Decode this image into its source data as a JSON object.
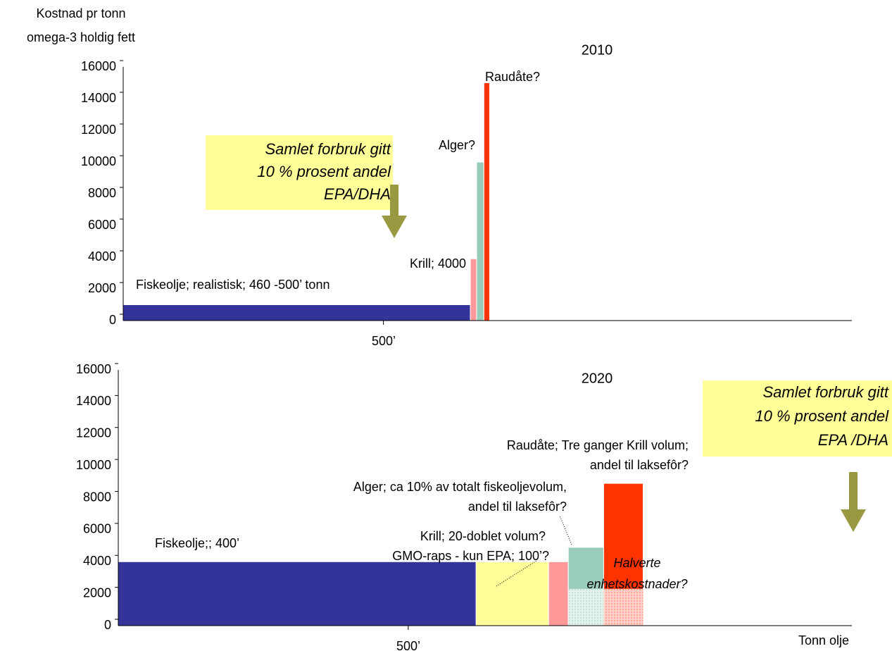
{
  "chart_data": [
    {
      "type": "bar",
      "title": "2010",
      "ylabel": [
        "Kostnad pr tonn",
        "omega-3 holdig fett"
      ],
      "categories": [
        [
          "Fiskeolje; realistisk; 460 -500’ tonn"
        ],
        [
          "Krill; 4000"
        ],
        [
          "Alger?"
        ],
        [
          "Raudåte?"
        ]
      ],
      "x": [
        0,
        667,
        679,
        693
      ],
      "widths": [
        667,
        12,
        14,
        11
      ],
      "values": [
        1000,
        3900,
        10000,
        15000
      ],
      "colors": [
        "#333399",
        "#ff9999",
        "#99ccbb",
        "#ff3300"
      ],
      "xlim": [
        0,
        1400
      ],
      "xticks": [
        {
          "value": 500,
          "label": "500’"
        }
      ],
      "ylim": [
        0,
        16000
      ],
      "yticks": [
        0,
        2000,
        4000,
        6000,
        8000,
        10000,
        12000,
        14000,
        16000
      ],
      "callout": [
        "Samlet forbruk gitt",
        "10 % prosent andel",
        "EPA/DHA"
      ]
    },
    {
      "type": "bar",
      "title": "2020",
      "xlabel": "Tonn olje",
      "categories": [
        [
          "Fiskeolje;; 400’"
        ],
        [
          "GMO-raps - kun EPA; 100’?"
        ],
        [
          "Krill; 20-doblet volum?"
        ],
        [
          "Alger; ca 10% av totalt fiskeoljevolum,",
          "andel til laksefôr?"
        ],
        [
          "Raudåte; Tre ganger Krill volum;",
          "andel til laksefôr?"
        ]
      ],
      "x": [
        0,
        617,
        742,
        776,
        837
      ],
      "widths": [
        617,
        125,
        34,
        61,
        68
      ],
      "values": [
        4000,
        4000,
        4000,
        4900,
        8900
      ],
      "overlay_values": [
        null,
        null,
        null,
        2300,
        2300
      ],
      "colors": [
        "#333399",
        "#ffff99",
        "#ff9999",
        "#99ccbb",
        "#ff3300"
      ],
      "xlim": [
        0,
        1265
      ],
      "xticks": [
        {
          "value": 500,
          "label": "500’"
        }
      ],
      "ylim": [
        0,
        16000
      ],
      "yticks": [
        0,
        2000,
        4000,
        6000,
        8000,
        10000,
        12000,
        14000,
        16000
      ],
      "callout": [
        "Samlet forbruk gitt",
        "10 % prosent andel",
        "EPA /DHA"
      ],
      "annotation": [
        "Halverte",
        "enhetskostnader?"
      ]
    }
  ]
}
